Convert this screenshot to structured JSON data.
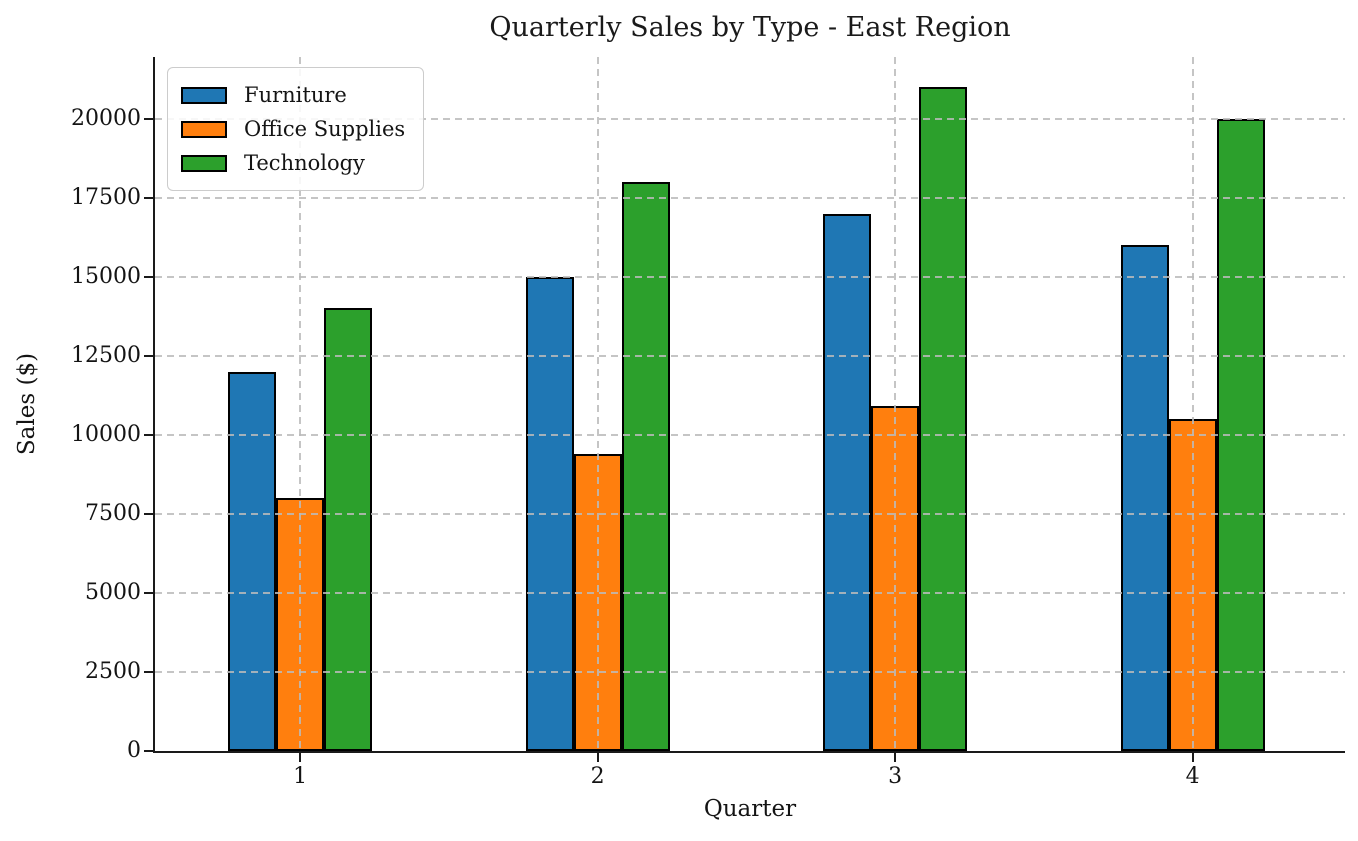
{
  "chart_data": {
    "type": "bar",
    "title": "Quarterly Sales by Type - East Region",
    "xlabel": "Quarter",
    "ylabel": "Sales ($)",
    "categories": [
      "1",
      "2",
      "3",
      "4"
    ],
    "series": [
      {
        "name": "Furniture",
        "color": "#1f77b4",
        "values": [
          12000,
          15000,
          17000,
          16000
        ]
      },
      {
        "name": "Office Supplies",
        "color": "#ff7f0e",
        "values": [
          8000,
          9400,
          10900,
          10500
        ]
      },
      {
        "name": "Technology",
        "color": "#2ca02c",
        "values": [
          14000,
          18000,
          21000,
          20000
        ]
      }
    ],
    "yticks": [
      0,
      2500,
      5000,
      7500,
      10000,
      12500,
      15000,
      17500,
      20000
    ],
    "ylim": [
      0,
      21950
    ],
    "grid": true,
    "grid_style": "dashed",
    "grid_above_bars": true,
    "legend_position": "upper-left",
    "bar_edge_color": "#000000",
    "spine_color": "#1a1a1a",
    "grid_color": "#bbbbbb"
  }
}
